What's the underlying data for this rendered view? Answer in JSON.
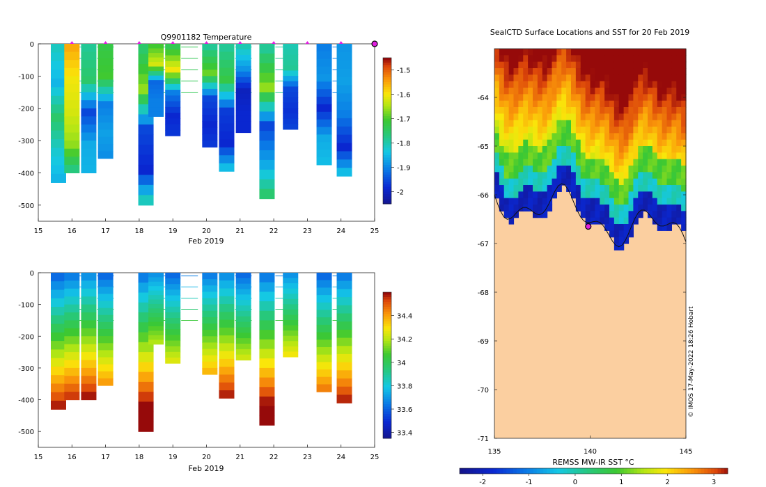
{
  "chart_data": [
    {
      "type": "heatmap",
      "panel": "temperature-section",
      "title": "Q9901182  Temperature",
      "xlabel": "Feb 2019",
      "ylabel": "",
      "xlim": [
        15,
        25
      ],
      "ylim": [
        -550,
        0
      ],
      "xticks": [
        15,
        16,
        17,
        18,
        19,
        20,
        21,
        22,
        23,
        24,
        25
      ],
      "yticks": [
        0,
        -100,
        -200,
        -300,
        -400,
        -500
      ],
      "colorbar": {
        "range": [
          -2.05,
          -1.45
        ],
        "ticks": [
          -1.5,
          -1.6,
          -1.7,
          -1.8,
          -1.9,
          -2
        ]
      },
      "surface_markers_x": [
        16,
        17,
        18,
        19,
        20,
        21,
        22,
        23,
        24
      ],
      "end_marker_x": 25,
      "profiles": [
        {
          "x": 15.6,
          "depth": 430,
          "colors": [
            [
              -1.81,
              -1.85,
              -1.75,
              -1.82,
              -1.86
            ]
          ]
        },
        {
          "x": 16.0,
          "depth": 400,
          "colors": [
            [
              -1.55,
              -1.6,
              -1.62,
              -1.66,
              -1.8
            ]
          ]
        },
        {
          "x": 16.5,
          "depth": 400,
          "colors": [
            [
              -1.78,
              -1.75,
              -1.95,
              -1.86,
              -1.85
            ]
          ]
        },
        {
          "x": 17.0,
          "depth": 355,
          "colors": [
            [
              -1.72,
              -1.7,
              -1.9,
              -1.87,
              -1.89
            ]
          ]
        },
        {
          "x": 18.2,
          "depth": 500,
          "colors": [
            [
              -1.75,
              -1.66,
              -1.95,
              -1.98,
              -1.75
            ]
          ]
        },
        {
          "x": 18.5,
          "depth": 225,
          "colors": [
            [
              -1.7,
              -1.62,
              -1.92,
              -1.9,
              -1.9
            ]
          ]
        },
        {
          "x": 19.0,
          "depth": 285,
          "colors": [
            [
              -1.73,
              -1.6,
              -1.9,
              -1.98,
              -1.96
            ]
          ]
        },
        {
          "x": 20.1,
          "depth": 320,
          "colors": [
            [
              -1.78,
              -1.68,
              -1.95,
              -1.98,
              -1.96
            ]
          ]
        },
        {
          "x": 20.6,
          "depth": 395,
          "colors": [
            [
              -1.78,
              -1.72,
              -1.96,
              -1.98,
              -1.8
            ]
          ]
        },
        {
          "x": 21.1,
          "depth": 275,
          "colors": [
            [
              -1.8,
              -1.88,
              -2.0,
              -1.98,
              -1.98
            ]
          ]
        },
        {
          "x": 21.8,
          "depth": 480,
          "colors": [
            [
              -1.78,
              -1.66,
              -1.95,
              -1.86,
              -1.72
            ]
          ]
        },
        {
          "x": 22.5,
          "depth": 265,
          "colors": [
            [
              -1.8,
              -1.78,
              -1.95,
              -1.97,
              -1.95
            ]
          ]
        },
        {
          "x": 23.5,
          "depth": 375,
          "colors": [
            [
              -1.9,
              -1.88,
              -1.98,
              -1.86,
              -1.84
            ]
          ]
        },
        {
          "x": 24.1,
          "depth": 410,
          "colors": [
            [
              -1.88,
              -1.87,
              -1.9,
              -1.98,
              -1.8
            ]
          ]
        }
      ]
    },
    {
      "type": "heatmap",
      "panel": "salinity-section",
      "title": "",
      "xlabel": "Feb 2019",
      "ylabel": "",
      "xlim": [
        15,
        25
      ],
      "ylim": [
        -550,
        0
      ],
      "xticks": [
        15,
        16,
        17,
        18,
        19,
        20,
        21,
        22,
        23,
        24,
        25
      ],
      "yticks": [
        0,
        -100,
        -200,
        -300,
        -400,
        -500
      ],
      "colorbar": {
        "range": [
          33.35,
          34.6
        ],
        "ticks": [
          34.4,
          34.2,
          34,
          33.8,
          33.6,
          33.4
        ]
      }
    },
    {
      "type": "heatmap",
      "panel": "sst-map",
      "title": "SealCTD Surface Locations and SST for 20 Feb 2019",
      "xlabel": "",
      "ylabel": "",
      "xlim": [
        135,
        145
      ],
      "ylim": [
        -71,
        -63
      ],
      "xticks": [
        135,
        140,
        145
      ],
      "yticks": [
        -64,
        -65,
        -66,
        -67,
        -68,
        -69,
        -70,
        -71
      ],
      "colorbar_label": "REMSS MW-IR SST °C",
      "colorbar": {
        "range": [
          -2.5,
          3.3
        ],
        "ticks": [
          -2,
          -1,
          0,
          1,
          2,
          3
        ]
      },
      "location_marker": {
        "lon": 139.9,
        "lat": -66.65
      },
      "credit": "© IMOS 17-May-2022 18:26 Hobart"
    }
  ],
  "labels": {
    "temp_title": "Q9901182  Temperature",
    "map_title": "SealCTD Surface Locations and SST for 20 Feb 2019",
    "xlabel_top": "Feb 2019",
    "xlabel_bottom": "Feb 2019",
    "sst_label": "REMSS MW-IR SST °C",
    "credit": "© IMOS 17-May-2022 18:26 Hobart"
  }
}
